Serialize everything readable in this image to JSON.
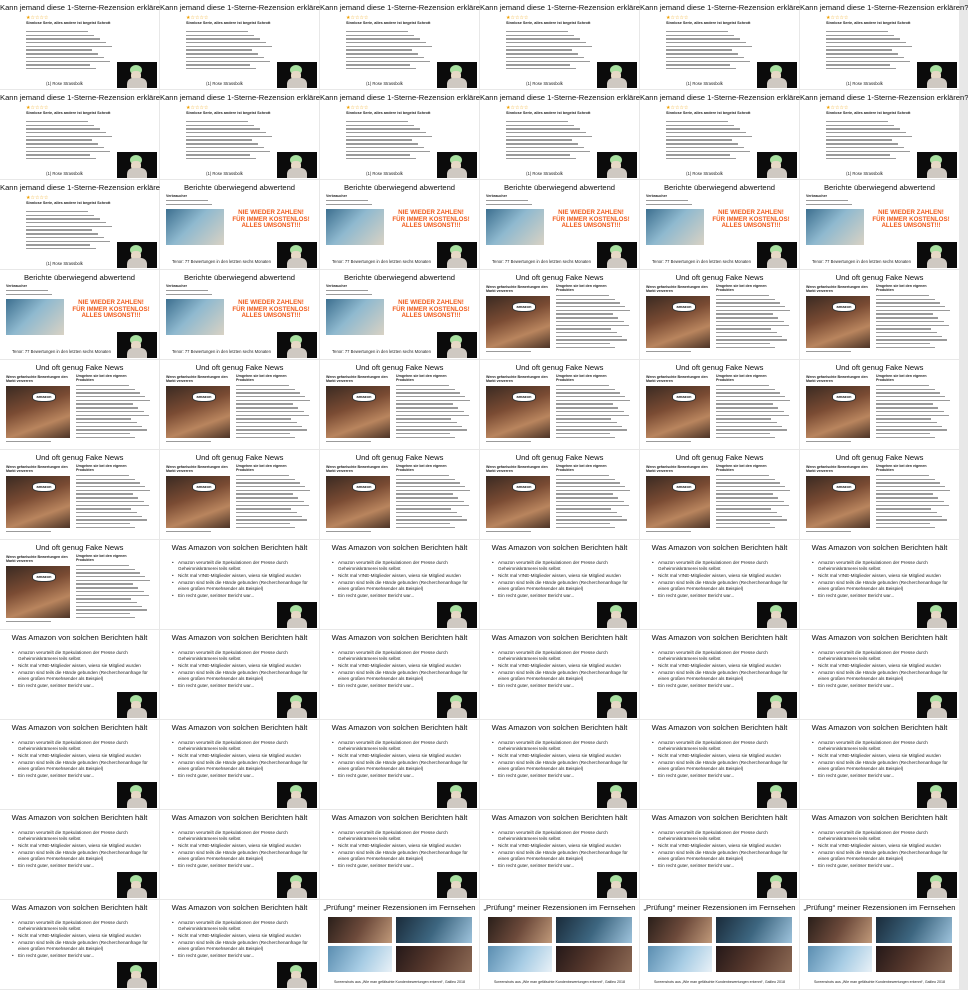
{
  "slides": {
    "review": {
      "title": "Kann jemand diese 1-Sterne-Rezension erklären?",
      "stars": "★☆☆☆☆",
      "review_title": "Sinnlose Serie, alles andere ist begeist Schrott",
      "caption": "(1) Rose Strassbolk"
    },
    "reports": {
      "title": "Berichte überwiegend abwertend",
      "site": "Verbraucher",
      "promo_line1": "NIE WIEDER ZAHLEN!",
      "promo_line2": "FÜR IMMER KOSTENLOS!",
      "promo_line3": "ALLES UMSONST!!!",
      "caption": "Tenor: 77 Bewertungen in den letzten sechs Monaten"
    },
    "fakenews": {
      "title": "Und oft genug Fake News",
      "headline_left": "Wenn gefaelschte Bewertungen den Markt verzerren",
      "headline_right": "Umgehen sie bei den eigenen Produkten",
      "amazon_label": "amazon"
    },
    "amazon_view": {
      "title": "Was Amazon von solchen Berichten hält",
      "bullets": [
        "Amazon verurteilt die Spekulationen der Presse durch Geheimniskrämerei teils selbst",
        "Nicht mal VINE-Mitglieder wissen, wieso sie Mitglied wurden",
        "Amazon sind teils die Hände gebunden (Recherchenanfrage für einen großen Fernsehsender als Beispiel)",
        "Ein recht guter, seriöser Bericht war..."
      ]
    },
    "tv": {
      "title": "„Prüfung“ meiner Rezensionen im Fernsehen",
      "caption": "Screenshots aus „Wie man gefälschte Kundenbewertungen erkennt“, Galileo 2018"
    }
  },
  "layout_sequence": [
    "review",
    "review",
    "review",
    "review",
    "review",
    "review",
    "review",
    "review",
    "review",
    "review",
    "review",
    "review",
    "review",
    "reports",
    "reports",
    "reports",
    "reports",
    "reports",
    "reports",
    "reports",
    "reports",
    "fakenews",
    "fakenews",
    "fakenews",
    "fakenews",
    "fakenews",
    "fakenews",
    "fakenews",
    "fakenews",
    "fakenews",
    "fakenews",
    "fakenews",
    "fakenews",
    "fakenews",
    "fakenews",
    "fakenews",
    "fakenews",
    "amazon_view",
    "amazon_view",
    "amazon_view",
    "amazon_view",
    "amazon_view",
    "amazon_view",
    "amazon_view",
    "amazon_view",
    "amazon_view",
    "amazon_view",
    "amazon_view",
    "amazon_view",
    "amazon_view",
    "amazon_view",
    "amazon_view",
    "amazon_view",
    "amazon_view",
    "amazon_view",
    "amazon_view",
    "amazon_view",
    "amazon_view",
    "amazon_view",
    "amazon_view",
    "amazon_view",
    "amazon_view",
    "tv",
    "tv",
    "tv",
    "tv"
  ],
  "colors": {
    "background": "#e8e8e8",
    "tile": "#ffffff",
    "promo_orange": "#f05a1a",
    "star": "#f0a000",
    "presenter_hair": "#a8e0a0"
  }
}
